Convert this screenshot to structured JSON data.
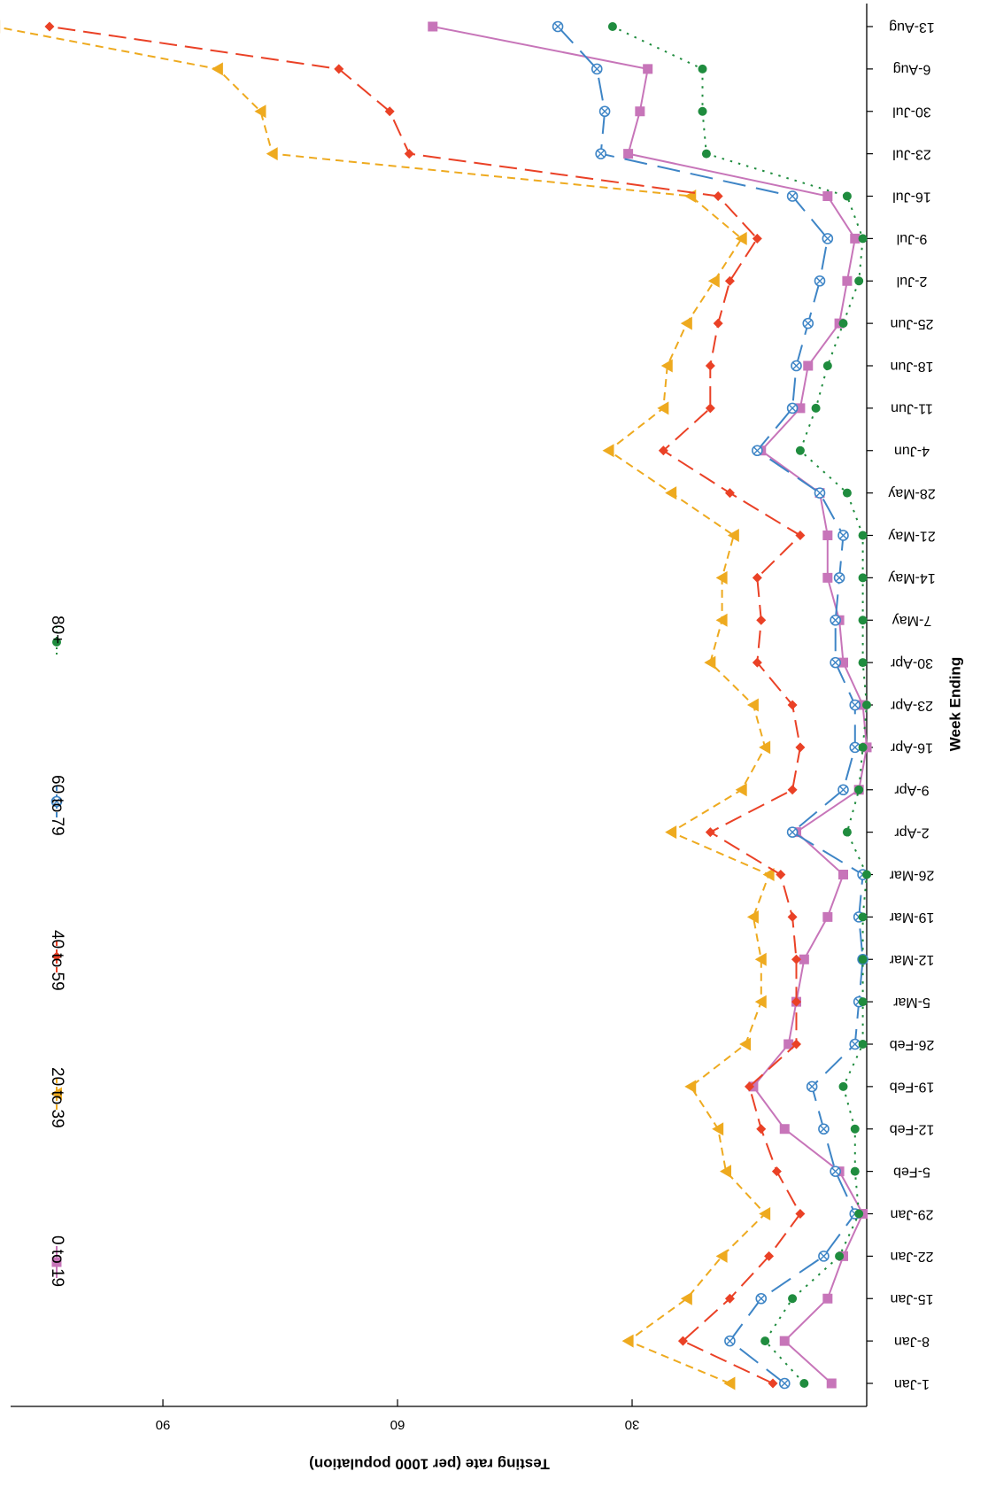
{
  "chart_data": {
    "type": "line",
    "title": "",
    "xlabel": "Week Ending",
    "ylabel": "Testing rate (per 1000 population)",
    "ylim": [
      0,
      110
    ],
    "yticks": [
      30,
      60,
      90
    ],
    "orientation": "rotated 180 degrees (text upside down)",
    "legend_position": "top (left edge of rotated page)",
    "grid": false,
    "categories": [
      "1-Jan",
      "8-Jan",
      "15-Jan",
      "22-Jan",
      "29-Jan",
      "5-Feb",
      "12-Feb",
      "19-Feb",
      "26-Feb",
      "5-Mar",
      "12-Mar",
      "19-Mar",
      "26-Mar",
      "2-Apr",
      "9-Apr",
      "16-Apr",
      "23-Apr",
      "30-Apr",
      "7-May",
      "14-May",
      "21-May",
      "28-May",
      "4-Jun",
      "11-Jun",
      "18-Jun",
      "25-Jun",
      "2-Jul",
      "9-Jul",
      "16-Jul",
      "23-Jul",
      "30-Jul",
      "6-Aug",
      "13-Aug"
    ],
    "series": [
      {
        "name": "0 to 19",
        "color": "#c775b9",
        "marker": "square",
        "dash": "solid",
        "values": [
          4.5,
          10.5,
          5.0,
          3.0,
          0.5,
          3.5,
          10.5,
          14.5,
          10.0,
          9.0,
          8.0,
          5.0,
          3.0,
          9.0,
          1.0,
          0.0,
          0.5,
          3.0,
          3.5,
          5.0,
          5.0,
          6.0,
          13.5,
          8.5,
          7.5,
          3.5,
          2.5,
          1.5,
          5.0,
          30.5,
          29.0,
          28.0,
          55.5
        ]
      },
      {
        "name": "20 to 39",
        "color": "#eeaa1f",
        "marker": "triangle",
        "dash": "short",
        "values": [
          17.5,
          30.5,
          23.0,
          18.5,
          13.0,
          18.0,
          19.0,
          22.5,
          15.5,
          13.5,
          13.5,
          14.5,
          12.5,
          25.0,
          16.0,
          13.0,
          14.5,
          20.0,
          18.5,
          18.5,
          17.0,
          25.0,
          33.0,
          26.0,
          25.5,
          23.0,
          19.5,
          16.0,
          22.5,
          76.0,
          77.5,
          83.0,
          111.5
        ]
      },
      {
        "name": "40 to 59",
        "color": "#ea4126",
        "marker": "diamond",
        "dash": "long",
        "values": [
          12.0,
          23.5,
          17.5,
          12.5,
          8.5,
          11.5,
          13.5,
          15.0,
          9.0,
          9.0,
          9.0,
          9.5,
          11.0,
          20.0,
          9.5,
          8.5,
          9.5,
          14.0,
          13.5,
          14.0,
          8.5,
          17.5,
          26.0,
          20.0,
          20.0,
          19.0,
          17.5,
          14.0,
          19.0,
          58.5,
          61.0,
          67.5,
          104.5
        ]
      },
      {
        "name": "60 to 79",
        "color": "#3e85c6",
        "marker": "circle-x",
        "dash": "longer",
        "values": [
          10.5,
          17.5,
          13.5,
          5.5,
          1.5,
          4.0,
          5.5,
          7.0,
          1.5,
          1.0,
          0.5,
          1.0,
          0.5,
          9.5,
          3.0,
          1.5,
          1.5,
          4.0,
          4.0,
          3.5,
          3.0,
          6.0,
          14.0,
          9.5,
          9.0,
          7.5,
          6.0,
          5.0,
          9.5,
          34.0,
          33.5,
          34.5,
          39.5
        ]
      },
      {
        "name": "80+",
        "color": "#1f8c3e",
        "marker": "circle",
        "dash": "dotted",
        "values": [
          8.0,
          13.0,
          9.5,
          3.5,
          1.0,
          1.5,
          1.5,
          3.0,
          0.5,
          0.5,
          0.5,
          0.5,
          0.0,
          2.5,
          1.0,
          0.5,
          0.0,
          0.5,
          0.5,
          0.5,
          0.5,
          2.5,
          8.5,
          6.5,
          5.0,
          3.0,
          1.0,
          0.5,
          2.5,
          20.5,
          21.0,
          21.0,
          32.5
        ]
      }
    ]
  }
}
